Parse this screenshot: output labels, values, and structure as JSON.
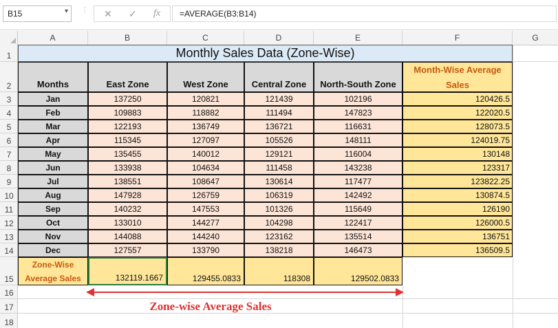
{
  "namebox": {
    "value": "B15",
    "dropdown_icon": "chevron-down-icon"
  },
  "formula_bar": {
    "cancel_icon": "✕",
    "enter_icon": "✓",
    "fx_label": "fx",
    "formula": "=AVERAGE(B3:B14)"
  },
  "columns": [
    "A",
    "B",
    "C",
    "D",
    "E",
    "F",
    "G"
  ],
  "rows": [
    "1",
    "2",
    "3",
    "4",
    "5",
    "6",
    "7",
    "8",
    "9",
    "10",
    "11",
    "12",
    "13",
    "14",
    "15",
    "16",
    "17",
    "18"
  ],
  "sheet": {
    "title": "Monthly Sales Data (Zone-Wise)",
    "headers": {
      "months": "Months",
      "east": "East Zone",
      "west": "West Zone",
      "central": "Central Zone",
      "northsouth": "North-South Zone",
      "monthwise_1": "Month-Wise Average",
      "monthwise_2": "Sales"
    },
    "data": [
      {
        "month": "Jan",
        "east": "137250",
        "west": "120821",
        "central": "121439",
        "ns": "102196",
        "avg": "120426.5"
      },
      {
        "month": "Feb",
        "east": "109883",
        "west": "118882",
        "central": "111494",
        "ns": "147823",
        "avg": "122020.5"
      },
      {
        "month": "Mar",
        "east": "122193",
        "west": "136749",
        "central": "136721",
        "ns": "116631",
        "avg": "128073.5"
      },
      {
        "month": "Apr",
        "east": "115345",
        "west": "127097",
        "central": "105526",
        "ns": "148111",
        "avg": "124019.75"
      },
      {
        "month": "May",
        "east": "135455",
        "west": "140012",
        "central": "129121",
        "ns": "116004",
        "avg": "130148"
      },
      {
        "month": "Jun",
        "east": "133938",
        "west": "104634",
        "central": "111458",
        "ns": "143238",
        "avg": "123317"
      },
      {
        "month": "Jul",
        "east": "138551",
        "west": "108647",
        "central": "130614",
        "ns": "117477",
        "avg": "123822.25"
      },
      {
        "month": "Aug",
        "east": "147928",
        "west": "126759",
        "central": "106319",
        "ns": "142492",
        "avg": "130874.5"
      },
      {
        "month": "Sep",
        "east": "140232",
        "west": "147553",
        "central": "101326",
        "ns": "115649",
        "avg": "126190"
      },
      {
        "month": "Oct",
        "east": "133010",
        "west": "144277",
        "central": "104298",
        "ns": "122417",
        "avg": "126000.5"
      },
      {
        "month": "Nov",
        "east": "144088",
        "west": "144240",
        "central": "123162",
        "ns": "135514",
        "avg": "136751"
      },
      {
        "month": "Dec",
        "east": "127557",
        "west": "133790",
        "central": "138218",
        "ns": "146473",
        "avg": "136509.5"
      }
    ],
    "zone_label_1": "Zone-Wise",
    "zone_label_2": "Average Sales",
    "zone_avgs": [
      "132119.1667",
      "129455.0833",
      "118308",
      "129502.0833"
    ]
  },
  "annotation": {
    "label": "Zone-wise Average Sales",
    "color": "#e03131"
  },
  "colors": {
    "title_bg": "#dbeaf6",
    "header_bg": "#d9d9d9",
    "value_bg": "#fce4d6",
    "avg_bg": "#ffe699",
    "avg_text": "#c55a11"
  }
}
